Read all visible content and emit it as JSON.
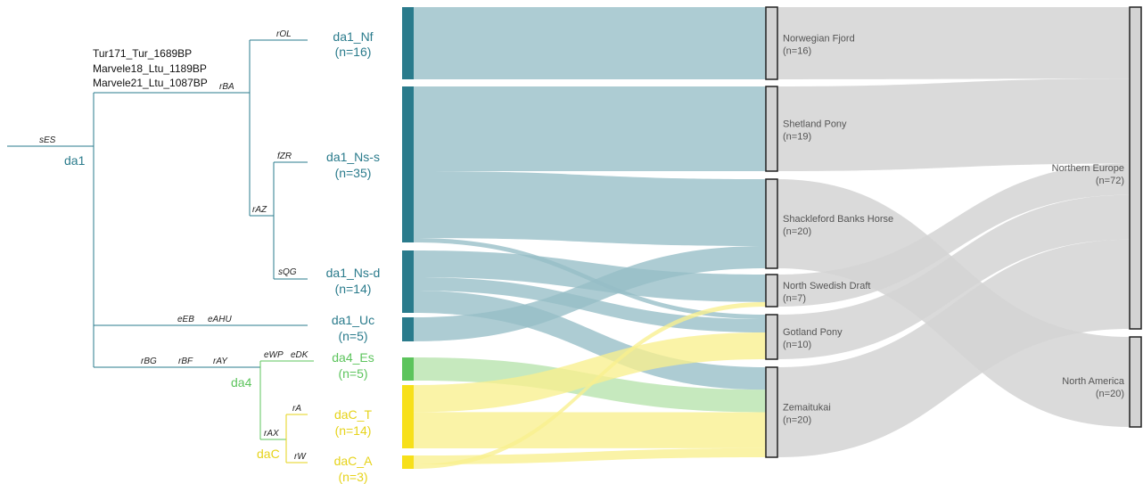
{
  "tree": {
    "root_branch": "sES",
    "clades": [
      {
        "key": "da1",
        "label": "da1",
        "color": "#2a7b8c"
      },
      {
        "key": "da4",
        "label": "da4",
        "color": "#5cc45c"
      },
      {
        "key": "daC",
        "label": "daC",
        "color": "#e6d31a"
      }
    ],
    "ancient_samples": [
      "Tur171_Tur_1689BP",
      "Marvele18_Ltu_1189BP",
      "Marvele21_Ltu_1087BP"
    ],
    "branch_labels": {
      "rOL": "rOL",
      "rBA": "rBA",
      "fZR": "fZR",
      "rAZ": "rAZ",
      "sQG": "sQG",
      "eEB": "eEB",
      "eAHU": "eAHU",
      "rBG": "rBG",
      "rBF": "rBF",
      "rAY": "rAY",
      "eWP": "eWP",
      "eDK": "eDK",
      "rA": "rA",
      "rAX": "rAX",
      "rW": "rW"
    }
  },
  "groups": [
    {
      "name": "da1_Nf",
      "count": "(n=16)",
      "color": "#2a7b8c"
    },
    {
      "name": "da1_Ns-s",
      "count": "(n=35)",
      "color": "#2a7b8c"
    },
    {
      "name": "da1_Ns-d",
      "count": "(n=14)",
      "color": "#2a7b8c"
    },
    {
      "name": "da1_Uc",
      "count": "(n=5)",
      "color": "#2a7b8c"
    },
    {
      "name": "da4_Es",
      "count": "(n=5)",
      "color": "#5cc45c"
    },
    {
      "name": "daC_T",
      "count": "(n=14)",
      "color": "#e6d31a"
    },
    {
      "name": "daC_A",
      "count": "(n=3)",
      "color": "#e6d31a"
    }
  ],
  "breeds": [
    {
      "name": "Norwegian Fjord",
      "count": "(n=16)"
    },
    {
      "name": "Shetland Pony",
      "count": "(n=19)"
    },
    {
      "name": "Shackleford Banks Horse",
      "count": "(n=20)"
    },
    {
      "name": "North Swedish Draft",
      "count": "(n=7)"
    },
    {
      "name": "Gotland Pony",
      "count": "(n=10)"
    },
    {
      "name": "Zemaitukai",
      "count": "(n=20)"
    }
  ],
  "regions": [
    {
      "name": "Northern Europe",
      "count": "(n=72)"
    },
    {
      "name": "North America",
      "count": "(n=20)"
    }
  ],
  "flows_group_to_breed": [
    {
      "from": 0,
      "to": 0,
      "value": 16
    },
    {
      "from": 1,
      "to": 1,
      "value": 19
    },
    {
      "from": 1,
      "to": 2,
      "value": 15
    },
    {
      "from": 1,
      "to": 4,
      "value": 1
    },
    {
      "from": 2,
      "to": 3,
      "value": 6
    },
    {
      "from": 2,
      "to": 4,
      "value": 3
    },
    {
      "from": 2,
      "to": 5,
      "value": 5
    },
    {
      "from": 3,
      "to": 2,
      "value": 5
    },
    {
      "from": 4,
      "to": 5,
      "value": 5
    },
    {
      "from": 5,
      "to": 4,
      "value": 6
    },
    {
      "from": 5,
      "to": 5,
      "value": 8
    },
    {
      "from": 6,
      "to": 5,
      "value": 2
    },
    {
      "from": 6,
      "to": 3,
      "value": 1
    }
  ],
  "flows_breed_to_region": [
    {
      "from": 0,
      "to": 0,
      "value": 16
    },
    {
      "from": 1,
      "to": 0,
      "value": 19
    },
    {
      "from": 2,
      "to": 1,
      "value": 20
    },
    {
      "from": 3,
      "to": 0,
      "value": 7
    },
    {
      "from": 4,
      "to": 0,
      "value": 10
    },
    {
      "from": 5,
      "to": 0,
      "value": 20
    }
  ],
  "colors": {
    "da1": "#2a7b8c",
    "da1_flow": "#96bec6",
    "da4": "#5cc45c",
    "da4_flow": "#b6e3ac",
    "daC": "#f7e019",
    "daC_flow": "#f9ef8e",
    "breed_flow": "#d4d4d4",
    "node_fill": "#d3d3d3",
    "node_stroke": "#222222"
  }
}
